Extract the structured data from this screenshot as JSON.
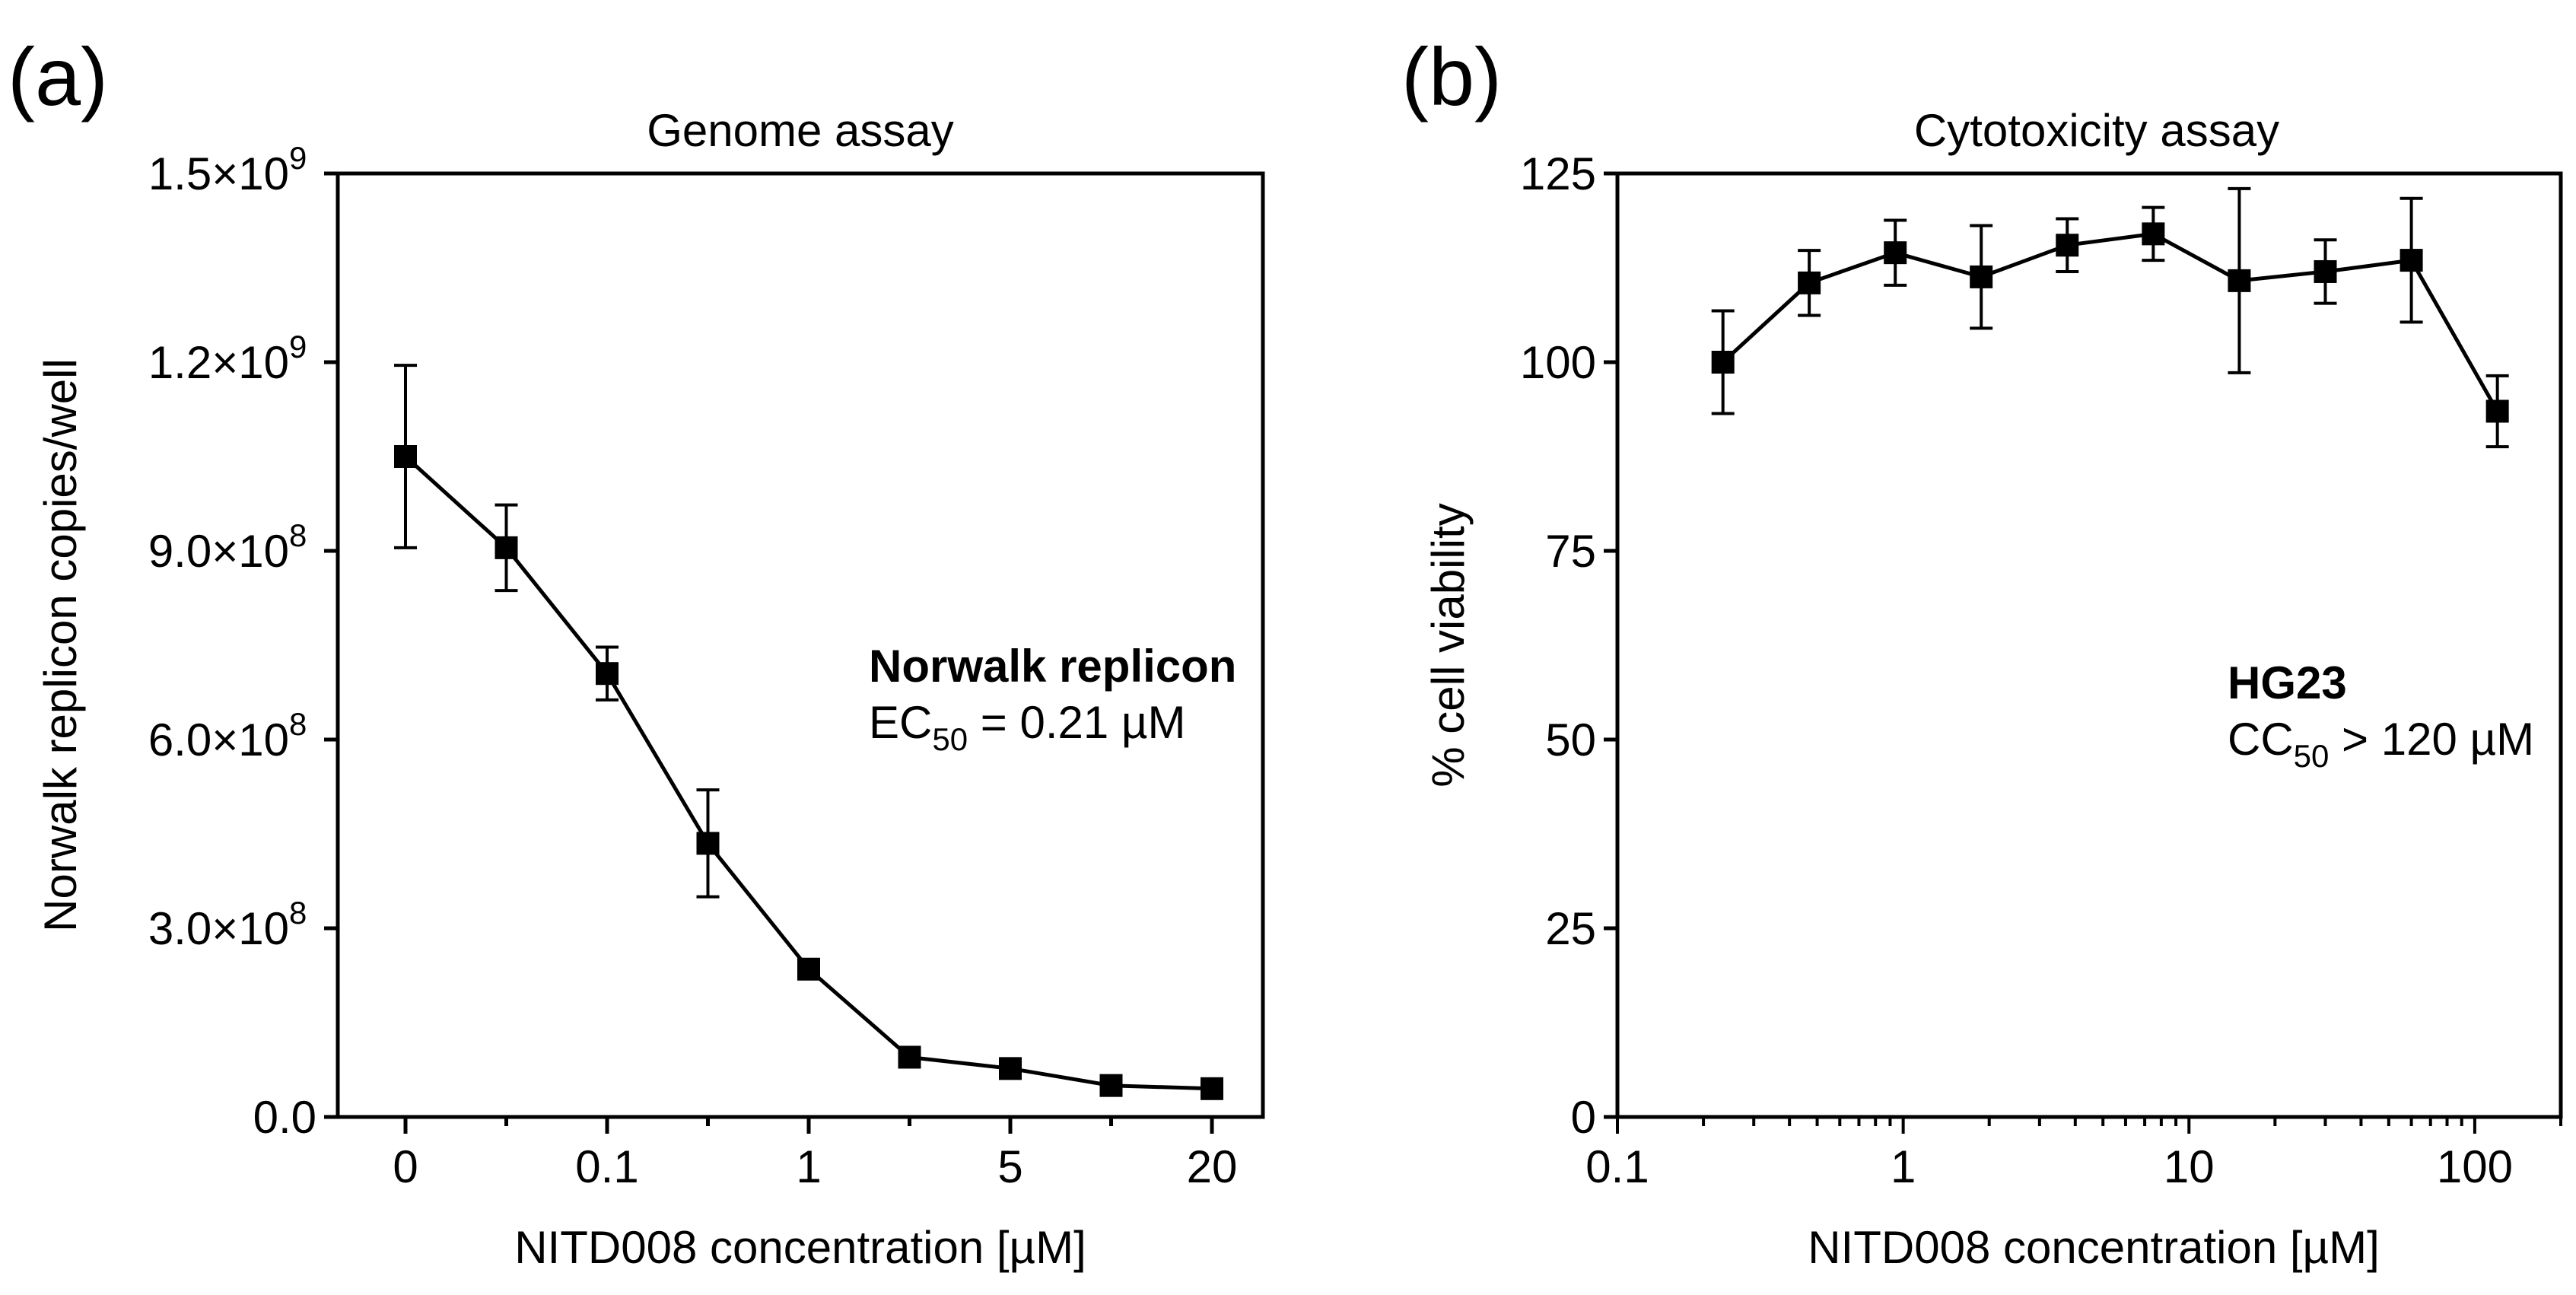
{
  "chart_data": [
    {
      "type": "line",
      "panel_label": "(a)",
      "title": "Genome assay",
      "xlabel": "NITD008 concentration [µM]",
      "ylabel": "Norwalk replicon copies/well",
      "x_scale": "categorical",
      "x_tick_labels": [
        "0",
        "0.1",
        "1",
        "5",
        "20"
      ],
      "y_tick_labels": [
        "0.0",
        "3.0×10",
        "6.0×10",
        "9.0×10",
        "1.2×10",
        "1.5×10"
      ],
      "y_tick_exponents": [
        "",
        "8",
        "8",
        "8",
        "9",
        "9"
      ],
      "ylim": [
        0,
        1500000000
      ],
      "grid": false,
      "series": [
        {
          "name": "Norwalk replicon",
          "x_index": [
            0,
            1,
            2,
            3,
            4,
            5,
            6,
            7,
            8
          ],
          "values": [
            1050000000,
            905000000,
            705000000,
            435000000,
            235000000,
            95000000,
            77000000,
            50000000,
            45000000
          ],
          "errors": [
            145000000,
            68000000,
            42000000,
            85000000,
            15000000,
            12000000,
            12000000,
            10000000,
            10000000
          ]
        }
      ],
      "annotation": {
        "name": "Norwalk replicon",
        "metric": "EC",
        "subscript": "50",
        "value": " = 0.21 µM"
      }
    },
    {
      "type": "line",
      "panel_label": "(b)",
      "title": "Cytotoxicity assay",
      "xlabel": "NITD008 concentration [µM]",
      "ylabel": "% cell viability",
      "x_scale": "log",
      "xlim": [
        0.1,
        200
      ],
      "x_ticks": [
        0.1,
        1,
        10,
        100
      ],
      "x_tick_labels": [
        "0.1",
        "1",
        "10",
        "100"
      ],
      "y_ticks": [
        0,
        25,
        50,
        75,
        100,
        125
      ],
      "y_tick_labels": [
        "0",
        "25",
        "50",
        "75",
        "100",
        "125"
      ],
      "ylim": [
        0,
        125
      ],
      "grid": false,
      "series": [
        {
          "name": "HG23",
          "x": [
            0.234,
            0.469,
            0.938,
            1.875,
            3.75,
            7.5,
            15,
            30,
            60,
            120
          ],
          "values": [
            100,
            110.5,
            114.5,
            111.3,
            115.5,
            117,
            110.8,
            112,
            113.5,
            93.5
          ],
          "errors": [
            6.8,
            4.3,
            4.3,
            6.8,
            3.5,
            3.5,
            12.2,
            4.2,
            8.2,
            4.7
          ]
        }
      ],
      "annotation": {
        "name": "HG23",
        "metric": "CC",
        "subscript": "50",
        "value": " > 120 µM"
      }
    }
  ]
}
